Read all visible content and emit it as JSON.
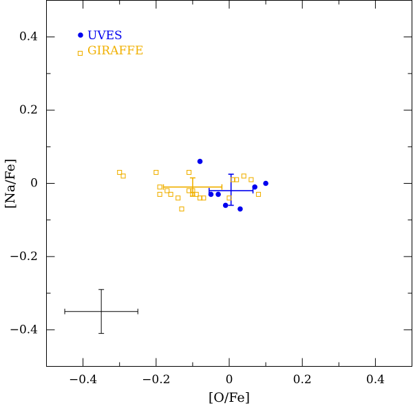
{
  "chart_data": {
    "type": "scatter",
    "title": "",
    "xlabel": "[O/Fe]",
    "ylabel": "[Na/Fe]",
    "xlim": [
      -0.5,
      0.5
    ],
    "ylim": [
      -0.5,
      0.5
    ],
    "x_ticks": [
      -0.4,
      -0.2,
      0,
      0.2,
      0.4
    ],
    "x_tick_labels": [
      "−0.4",
      "−0.2",
      "0",
      "0.2",
      "0.4"
    ],
    "y_ticks": [
      0.4,
      0.2,
      0,
      -0.2,
      -0.4
    ],
    "y_tick_labels": [
      "0.4",
      "0.2",
      "0",
      "−0.2",
      "−0.4"
    ],
    "grid": false,
    "legend_position": "top-left",
    "series": [
      {
        "name": "UVES",
        "marker": "filled-circle",
        "color": "#0000ee",
        "points": [
          [
            -0.08,
            0.06
          ],
          [
            -0.05,
            -0.03
          ],
          [
            -0.03,
            -0.03
          ],
          [
            -0.01,
            -0.06
          ],
          [
            0.03,
            -0.07
          ],
          [
            0.07,
            -0.01
          ],
          [
            0.1,
            0.0
          ]
        ],
        "mean": {
          "x": 0.005,
          "y": -0.02,
          "x_err": 0.06,
          "y_err_low": 0.04,
          "y_err_high": 0.045
        }
      },
      {
        "name": "GIRAFFE",
        "marker": "open-square",
        "color": "#f0b000",
        "points": [
          [
            -0.3,
            0.03
          ],
          [
            -0.29,
            0.02
          ],
          [
            -0.2,
            0.03
          ],
          [
            -0.19,
            -0.01
          ],
          [
            -0.19,
            -0.03
          ],
          [
            -0.17,
            -0.02
          ],
          [
            -0.16,
            -0.03
          ],
          [
            -0.14,
            -0.04
          ],
          [
            -0.13,
            -0.07
          ],
          [
            -0.11,
            0.03
          ],
          [
            -0.11,
            -0.02
          ],
          [
            -0.1,
            -0.02
          ],
          [
            -0.1,
            -0.03
          ],
          [
            -0.09,
            -0.03
          ],
          [
            -0.08,
            -0.04
          ],
          [
            -0.07,
            -0.04
          ],
          [
            0.0,
            -0.04
          ],
          [
            0.01,
            0.01
          ],
          [
            0.02,
            0.01
          ],
          [
            0.04,
            0.02
          ],
          [
            0.06,
            0.01
          ],
          [
            0.08,
            -0.03
          ]
        ],
        "mean": {
          "x": -0.1,
          "y": -0.01,
          "x_err": 0.08,
          "y_err_low": 0.025,
          "y_err_high": 0.025
        }
      }
    ],
    "typical_error": {
      "x": -0.35,
      "y": -0.35,
      "x_err": 0.1,
      "y_err": 0.06,
      "color": "#000000"
    }
  }
}
